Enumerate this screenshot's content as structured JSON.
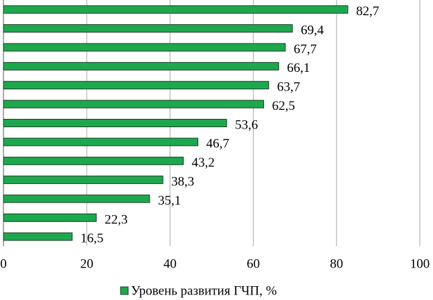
{
  "chart_data": {
    "type": "barh",
    "categories": [
      null,
      null,
      null,
      null,
      null,
      null,
      null,
      null,
      null,
      null,
      null,
      null,
      null
    ],
    "series": [
      {
        "name": "Уровень развития ГЧП, %",
        "color": "#1ea84e",
        "values": [
          82.7,
          69.4,
          67.7,
          66.1,
          63.7,
          62.5,
          53.6,
          46.7,
          43.2,
          38.3,
          35.1,
          22.3,
          16.5
        ],
        "value_labels": [
          "82,7",
          "69,4",
          "67,7",
          "66,1",
          "63,7",
          "62,5",
          "53,6",
          "46,7",
          "43,2",
          "38,3",
          "35,1",
          "22,3",
          "16,5"
        ]
      }
    ],
    "xlim": [
      0,
      100
    ],
    "xticks": [
      0,
      20,
      40,
      60,
      80,
      100
    ],
    "grid": true,
    "legend": "bottom"
  }
}
